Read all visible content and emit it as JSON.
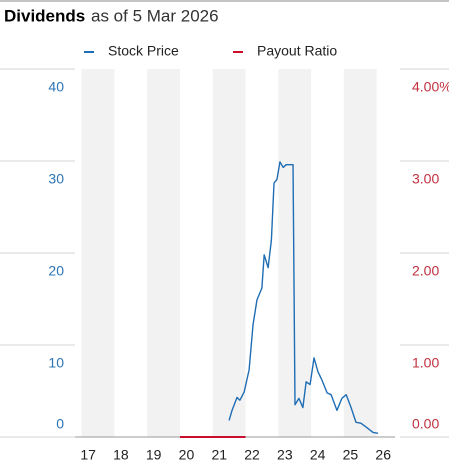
{
  "chart_data": {
    "type": "line",
    "title": "Dividends",
    "subtitle": "as of 5 Mar 2026",
    "xlim": [
      16.6,
      26.36
    ],
    "xticks": [
      17,
      18,
      19,
      20,
      21,
      22,
      23,
      24,
      25,
      26
    ],
    "ylim": [
      0,
      40
    ],
    "yticks": [
      40,
      30,
      20,
      10,
      0
    ],
    "y2lim": [
      0,
      4
    ],
    "y2ticks": [
      {
        "value": 4,
        "label": "4.00%"
      },
      {
        "value": 3,
        "label": "3.00"
      },
      {
        "value": 2,
        "label": "2.00"
      },
      {
        "value": 1,
        "label": "1.00"
      },
      {
        "value": 0,
        "label": "0.00"
      }
    ],
    "grid": true,
    "series": [
      {
        "name": "Stock Price",
        "color": "#1f6db4",
        "x": [
          21.3,
          21.39,
          21.54,
          21.63,
          21.76,
          21.91,
          22.03,
          22.15,
          22.3,
          22.37,
          22.49,
          22.59,
          22.67,
          22.76,
          22.85,
          22.95,
          23.04,
          23.25,
          23.31,
          23.43,
          23.55,
          23.65,
          23.77,
          23.89,
          24.01,
          24.13,
          24.29,
          24.41,
          24.59,
          24.74,
          24.87,
          25.02,
          25.17,
          25.32,
          25.51,
          25.69,
          25.84
        ],
        "values": [
          1.8,
          2.9,
          4.3,
          4.0,
          4.9,
          7.3,
          12.2,
          14.9,
          16.2,
          19.8,
          18.4,
          21.4,
          27.6,
          28.0,
          29.9,
          29.3,
          29.6,
          29.6,
          3.5,
          4.2,
          3.2,
          6.0,
          5.7,
          8.6,
          7.1,
          6.2,
          4.8,
          4.6,
          2.9,
          4.2,
          4.6,
          3.2,
          1.6,
          1.5,
          1.0,
          0.5,
          0.4
        ]
      },
      {
        "name": "Payout Ratio",
        "color": "#c8102e",
        "axis": "y2",
        "x": [
          19.8,
          21.8
        ],
        "values": [
          0,
          0
        ]
      }
    ]
  }
}
